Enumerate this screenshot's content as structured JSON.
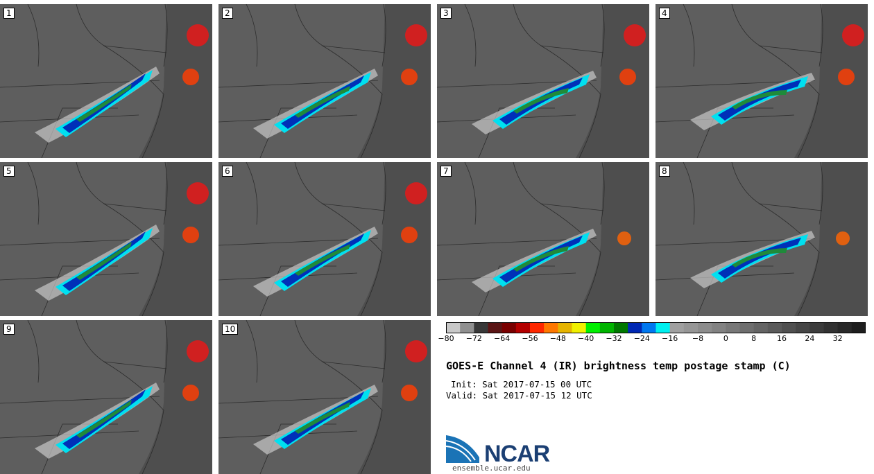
{
  "panels": [
    "1",
    "2",
    "3",
    "4",
    "5",
    "6",
    "7",
    "8",
    "9",
    "10"
  ],
  "colorbar": {
    "colors": [
      "#c8c8c8",
      "#909090",
      "#383838",
      "#5a1515",
      "#7a0000",
      "#b40000",
      "#ff2800",
      "#ff7800",
      "#e6b400",
      "#f0f000",
      "#00f000",
      "#00b400",
      "#007800",
      "#0028b4",
      "#0078f0",
      "#00f0f0",
      "#a0a0a0",
      "#969696",
      "#8c8c8c",
      "#828282",
      "#787878",
      "#6e6e6e",
      "#646464",
      "#5a5a5a",
      "#505050",
      "#464646",
      "#3c3c3c",
      "#323232",
      "#282828",
      "#1e1e1e"
    ],
    "tick_labels": [
      "−80",
      "−72",
      "−64",
      "−56",
      "−48",
      "−40",
      "−32",
      "−24",
      "−16",
      "−8",
      "0",
      "8",
      "16",
      "24",
      "32"
    ]
  },
  "title": "GOES-E Channel 4 (IR) brightness temp postage stamp (C)",
  "init_line": "Init: Sat 2017-07-15 00 UTC",
  "valid_line": "Valid: Sat 2017-07-15 12 UTC",
  "logo_text": "NCAR",
  "url": "ensemble.ucar.edu"
}
